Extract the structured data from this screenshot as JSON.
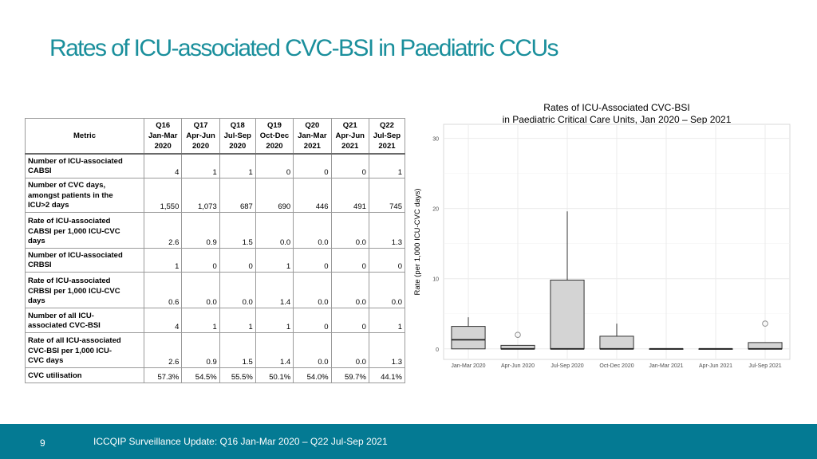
{
  "slide": {
    "title": "Rates of ICU-associated CVC-BSI in Paediatric CCUs",
    "page_number": "9",
    "footer": "ICCQIP Surveillance Update: Q16 Jan-Mar 2020 – Q22 Jul-Sep 2021"
  },
  "table": {
    "metric_header": "Metric",
    "columns": [
      [
        "Q16",
        "Jan-Mar",
        "2020"
      ],
      [
        "Q17",
        "Apr-Jun",
        "2020"
      ],
      [
        "Q18",
        "Jul-Sep",
        "2020"
      ],
      [
        "Q19",
        "Oct-Dec",
        "2020"
      ],
      [
        "Q20",
        "Jan-Mar",
        "2021"
      ],
      [
        "Q21",
        "Apr-Jun",
        "2021"
      ],
      [
        "Q22",
        "Jul-Sep",
        "2021"
      ]
    ],
    "rows": [
      {
        "label": [
          "Number of ICU-associated",
          "CABSI"
        ],
        "values": [
          "4",
          "1",
          "1",
          "0",
          "0",
          "0",
          "1"
        ]
      },
      {
        "label": [
          "Number of CVC days,",
          "amongst patients in the",
          "ICU>2 days"
        ],
        "values": [
          "1,550",
          "1,073",
          "687",
          "690",
          "446",
          "491",
          "745"
        ]
      },
      {
        "label": [
          "Rate of ICU-associated",
          "CABSI  per 1,000 ICU-CVC",
          "days"
        ],
        "values": [
          "2.6",
          "0.9",
          "1.5",
          "0.0",
          "0.0",
          "0.0",
          "1.3"
        ]
      },
      {
        "label": [
          "Number of ICU-associated",
          "CRBSI"
        ],
        "values": [
          "1",
          "0",
          "0",
          "1",
          "0",
          "0",
          "0"
        ]
      },
      {
        "label": [
          "Rate of ICU-associated",
          "CRBSI per 1,000 ICU-CVC",
          "days"
        ],
        "values": [
          "0.6",
          "0.0",
          "0.0",
          "1.4",
          "0.0",
          "0.0",
          "0.0"
        ]
      },
      {
        "label": [
          "Number of all ICU-",
          "associated CVC-BSI"
        ],
        "values": [
          "4",
          "1",
          "1",
          "1",
          "0",
          "0",
          "1"
        ]
      },
      {
        "label": [
          "Rate of all ICU-associated",
          "CVC-BSI per 1,000 ICU-",
          "CVC days"
        ],
        "values": [
          "2.6",
          "0.9",
          "1.5",
          "1.4",
          "0.0",
          "0.0",
          "1.3"
        ]
      },
      {
        "label": [
          "CVC utilisation"
        ],
        "values": [
          "57.3%",
          "54.5%",
          "55.5%",
          "50.1%",
          "54.0%",
          "59.7%",
          "44.1%"
        ]
      }
    ]
  },
  "chart_data": {
    "type": "boxplot",
    "title": [
      "Rates of ICU-Associated CVC-BSI",
      "in Paediatric Critical Care Units, Jan 2020 – Sep 2021"
    ],
    "xlabel": "",
    "ylabel": "Rate (per 1,000 ICU-CVC days)",
    "ylim": [
      -1.5,
      32
    ],
    "yticks": [
      0,
      10,
      20,
      30
    ],
    "grid": true,
    "categories": [
      "Jan-Mar 2020",
      "Apr-Jun 2020",
      "Jul-Sep 2020",
      "Oct-Dec 2020",
      "Jan-Mar 2021",
      "Apr-Jun 2021",
      "Jul-Sep 2021"
    ],
    "boxes": [
      {
        "min": 0,
        "q1": 0,
        "median": 1.3,
        "q3": 3.2,
        "max": 4.5,
        "outliers": []
      },
      {
        "min": 0,
        "q1": 0,
        "median": 0,
        "q3": 0.5,
        "max": 0.5,
        "outliers": [
          2.0
        ]
      },
      {
        "min": 0,
        "q1": 0,
        "median": 0,
        "q3": 9.8,
        "max": 19.6,
        "outliers": []
      },
      {
        "min": 0,
        "q1": 0,
        "median": 0,
        "q3": 1.8,
        "max": 3.6,
        "outliers": []
      },
      {
        "min": 0,
        "q1": 0,
        "median": 0,
        "q3": 0,
        "max": 0,
        "outliers": []
      },
      {
        "min": 0,
        "q1": 0,
        "median": 0,
        "q3": 0,
        "max": 0,
        "outliers": []
      },
      {
        "min": 0,
        "q1": 0,
        "median": 0,
        "q3": 0.9,
        "max": 0.9,
        "outliers": [
          3.6
        ]
      }
    ],
    "colors": {
      "box_fill": "#d4d4d4",
      "box_stroke": "#333333",
      "grid": "#ebebeb"
    }
  }
}
